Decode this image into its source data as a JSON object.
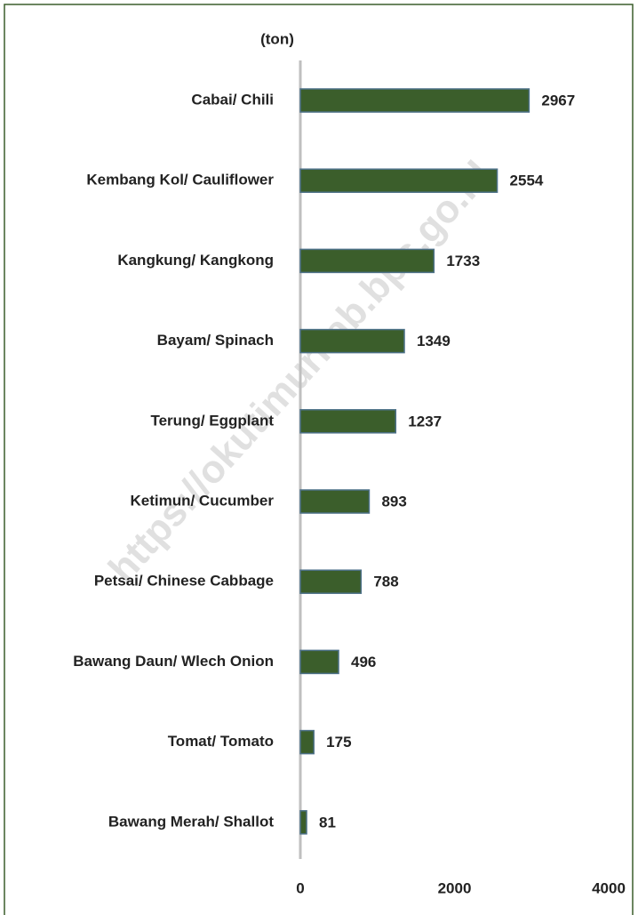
{
  "chart_data": {
    "type": "bar",
    "orientation": "horizontal",
    "axis_label": "(ton)",
    "watermark": "https://okutimurkab.bps.go.id",
    "categories": [
      "Cabai/ Chili",
      "Kembang Kol/ Cauliflower",
      "Kangkung/ Kangkong",
      "Bayam/ Spinach",
      "Terung/ Eggplant",
      "Ketimun/ Cucumber",
      "Petsai/ Chinese Cabbage",
      "Bawang Daun/ Wlech Onion",
      "Tomat/ Tomato",
      "Bawang Merah/ Shallot"
    ],
    "values": [
      2967,
      2554,
      1733,
      1349,
      1237,
      893,
      788,
      496,
      175,
      81
    ],
    "color": "#3b5e2b",
    "xlim": [
      0,
      4000
    ],
    "xticks": [
      0,
      2000,
      4000
    ]
  }
}
